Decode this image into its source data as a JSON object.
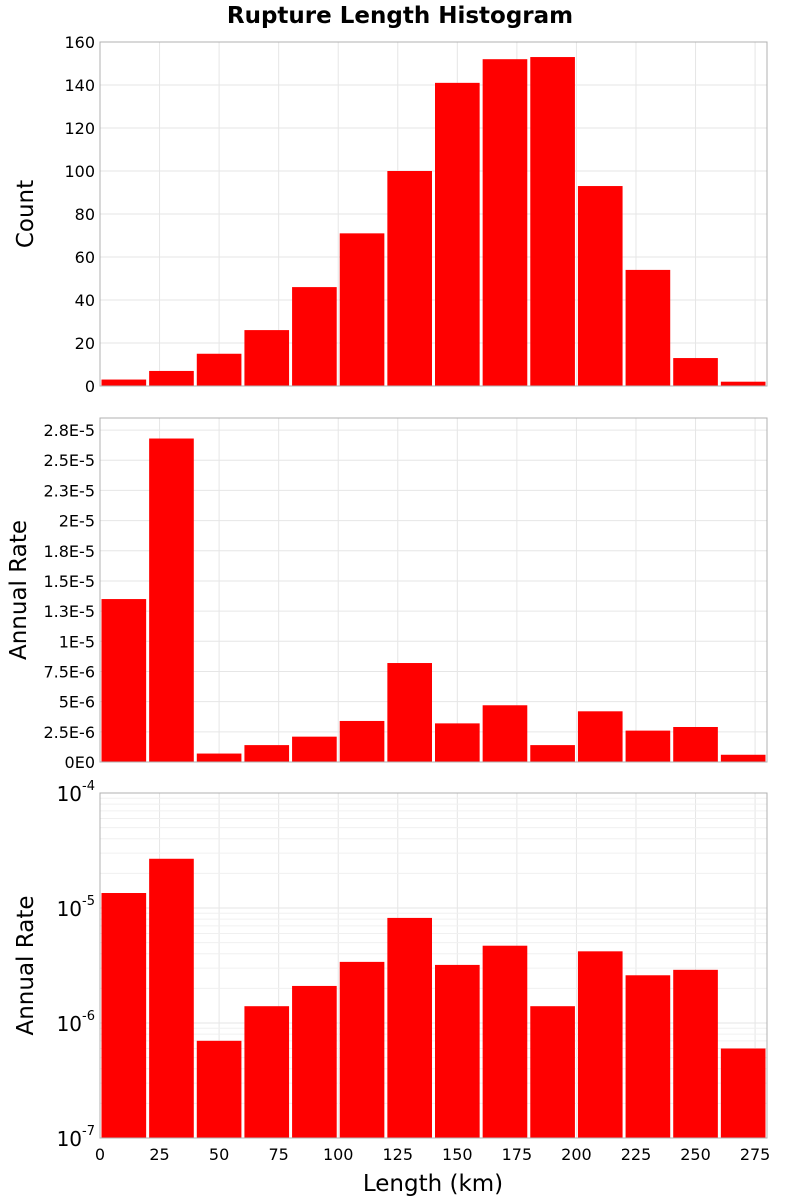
{
  "chart_data": {
    "title": "Rupture Length Histogram",
    "xlabel": "Length (km)",
    "x_ticks": [
      0,
      25,
      50,
      75,
      100,
      125,
      150,
      175,
      200,
      225,
      250,
      275
    ],
    "xlim": [
      0,
      280
    ],
    "bin_width": 20,
    "bins": [
      0,
      20,
      40,
      60,
      80,
      100,
      120,
      140,
      160,
      180,
      200,
      220,
      240,
      260
    ],
    "bar_color": "#ff0000",
    "grid": true,
    "panels": [
      {
        "type": "bar",
        "ylabel": "Count",
        "scale": "linear",
        "ylim": [
          0,
          160
        ],
        "y_ticks": [
          0,
          20,
          40,
          60,
          80,
          100,
          120,
          140,
          160
        ],
        "y_tick_labels": [
          "0",
          "20",
          "40",
          "60",
          "80",
          "100",
          "120",
          "140",
          "160"
        ],
        "values": [
          3,
          7,
          15,
          26,
          46,
          71,
          100,
          141,
          152,
          153,
          93,
          54,
          13,
          2
        ]
      },
      {
        "type": "bar",
        "ylabel": "Annual Rate",
        "scale": "linear",
        "ylim": [
          0,
          2.85e-05
        ],
        "y_ticks": [
          0,
          2.5e-06,
          5e-06,
          7.5e-06,
          1e-05,
          1.25e-05,
          1.5e-05,
          1.75e-05,
          2e-05,
          2.25e-05,
          2.5e-05,
          2.75e-05
        ],
        "y_tick_labels": [
          "0E0",
          "2.5E-6",
          "5E-6",
          "7.5E-6",
          "1E-5",
          "1.3E-5",
          "1.5E-5",
          "1.8E-5",
          "2E-5",
          "2.3E-5",
          "2.5E-5",
          "2.8E-5"
        ],
        "values": [
          1.35e-05,
          2.68e-05,
          7e-07,
          1.4e-06,
          2.1e-06,
          3.4e-06,
          8.2e-06,
          3.2e-06,
          4.7e-06,
          1.4e-06,
          4.2e-06,
          2.6e-06,
          2.9e-06,
          6e-07
        ]
      },
      {
        "type": "bar",
        "ylabel": "Annual Rate",
        "scale": "log",
        "ylim": [
          1e-07,
          0.0001
        ],
        "y_ticks": [
          1e-07,
          1e-06,
          1e-05,
          0.0001
        ],
        "y_tick_labels": [
          {
            "base": "10",
            "exp": "-7"
          },
          {
            "base": "10",
            "exp": "-6"
          },
          {
            "base": "10",
            "exp": "-5"
          },
          {
            "base": "10",
            "exp": "-4"
          }
        ],
        "values": [
          1.35e-05,
          2.68e-05,
          7e-07,
          1.4e-06,
          2.1e-06,
          3.4e-06,
          8.2e-06,
          3.2e-06,
          4.7e-06,
          1.4e-06,
          4.2e-06,
          2.6e-06,
          2.9e-06,
          6e-07
        ]
      }
    ]
  }
}
